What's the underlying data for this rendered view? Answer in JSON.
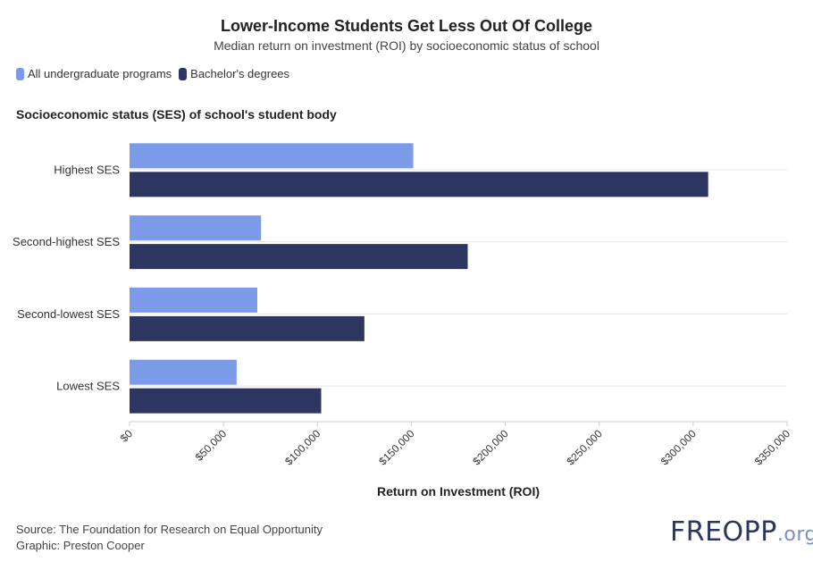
{
  "header": {
    "title": "Lower-Income Students Get Less Out Of College",
    "subtitle": "Median return on investment (ROI) by socioeconomic status of school"
  },
  "legend": {
    "items": [
      {
        "label": "All undergraduate programs",
        "color": "#7b9ae8"
      },
      {
        "label": "Bachelor's degrees",
        "color": "#2d3561"
      }
    ]
  },
  "axis": {
    "y_title": "Socioeconomic status (SES) of school's student body",
    "x_title": "Return on Investment (ROI)"
  },
  "footer": {
    "source": "Source: The Foundation for Research on Equal Opportunity",
    "graphic": "Graphic: Preston Cooper",
    "logo_main": "FREOPP",
    "logo_suffix": ".org"
  },
  "chart_data": {
    "type": "bar",
    "orientation": "horizontal",
    "categories": [
      "Highest SES",
      "Second-highest SES",
      "Second-lowest SES",
      "Lowest SES"
    ],
    "series": [
      {
        "name": "All undergraduate programs",
        "color": "#7b9ae8",
        "values": [
          151000,
          70000,
          68000,
          57000
        ]
      },
      {
        "name": "Bachelor's degrees",
        "color": "#2d3561",
        "values": [
          308000,
          180000,
          125000,
          102000
        ]
      }
    ],
    "xlim": [
      0,
      350000
    ],
    "xticks": [
      "$0",
      "$50,000",
      "$100,000",
      "$150,000",
      "$200,000",
      "$250,000",
      "$300,000",
      "$350,000"
    ],
    "xtick_values": [
      0,
      50000,
      100000,
      150000,
      200000,
      250000,
      300000,
      350000
    ],
    "grid": true
  }
}
